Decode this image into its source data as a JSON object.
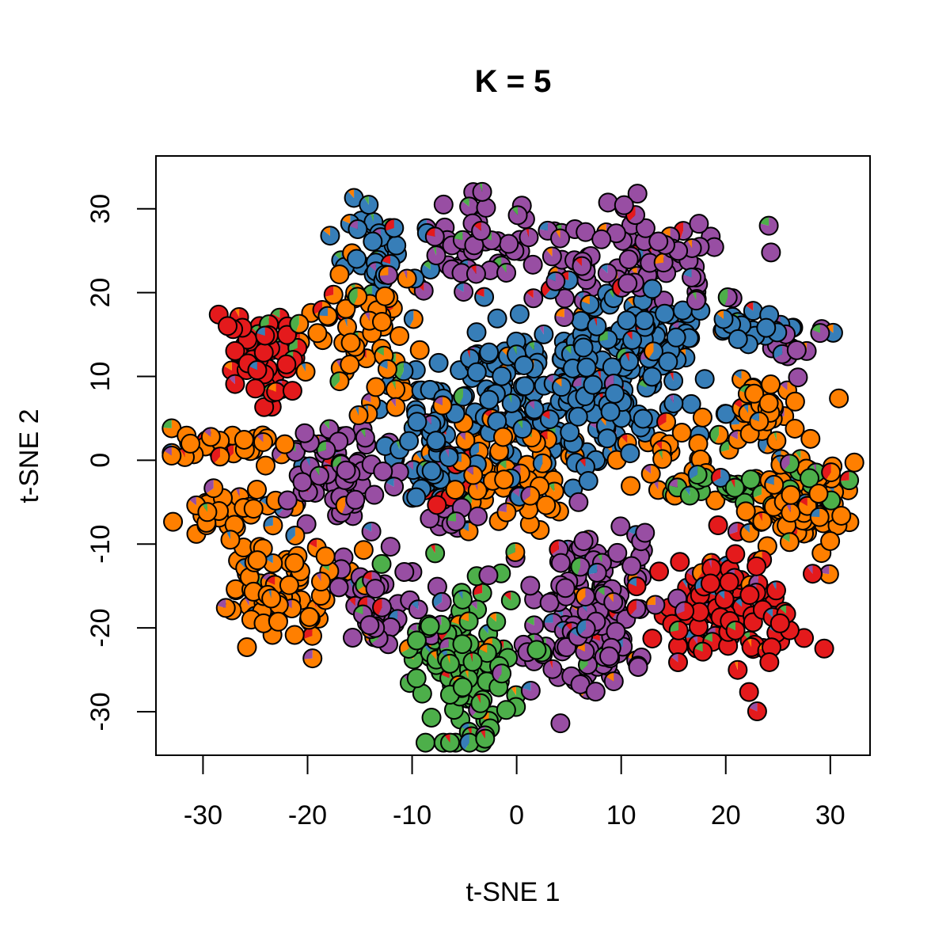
{
  "chart_data": {
    "type": "scatter",
    "title": "K = 5",
    "xlabel": "t-SNE 1",
    "ylabel": "t-SNE 2",
    "xlim": [
      -34.5,
      33.8
    ],
    "ylim": [
      -35.2,
      36.3
    ],
    "xticks": [
      -30,
      -20,
      -10,
      0,
      10,
      20,
      30
    ],
    "yticks": [
      -30,
      -20,
      -10,
      0,
      10,
      20,
      30
    ],
    "tick_labels_x": [
      "-30",
      "-20",
      "-10",
      "0",
      "10",
      "20",
      "30"
    ],
    "tick_labels_y": [
      "-30",
      "-20",
      "-10",
      "0",
      "10",
      "20",
      "30"
    ],
    "grid": false,
    "legend": "none",
    "point_style": "pie-chart markers showing membership proportions of K = 5 clusters",
    "cluster_colors": [
      "#E41A1C",
      "#377EB8",
      "#4DAF4A",
      "#984EA3",
      "#FF7F00"
    ],
    "clusters": [
      {
        "color": "#E41A1C",
        "center": [
          -25,
          12
        ],
        "sd": [
          1.8,
          3.2
        ],
        "n": 55
      },
      {
        "color": "#E41A1C",
        "center": [
          20,
          -18
        ],
        "sd": [
          3.2,
          3.3
        ],
        "n": 110
      },
      {
        "color": "#E41A1C",
        "center": [
          -7,
          -2
        ],
        "sd": [
          1.5,
          2.5
        ],
        "n": 12
      },
      {
        "color": "#377EB8",
        "center": [
          5,
          8
        ],
        "sd": [
          6.0,
          4.5
        ],
        "n": 230
      },
      {
        "color": "#377EB8",
        "center": [
          -13,
          24
        ],
        "sd": [
          1.6,
          2.3
        ],
        "n": 32
      },
      {
        "color": "#377EB8",
        "center": [
          -8,
          2
        ],
        "sd": [
          2.0,
          4.0
        ],
        "n": 55
      },
      {
        "color": "#377EB8",
        "center": [
          23,
          16
        ],
        "sd": [
          4.0,
          1.0
        ],
        "n": 25
      },
      {
        "color": "#377EB8",
        "center": [
          12,
          15
        ],
        "sd": [
          3.0,
          2.0
        ],
        "n": 55
      },
      {
        "color": "#4DAF4A",
        "center": [
          -5,
          -24
        ],
        "sd": [
          3.0,
          5.5
        ],
        "n": 125
      },
      {
        "color": "#4DAF4A",
        "center": [
          20,
          -3
        ],
        "sd": [
          3.0,
          1.0
        ],
        "n": 22
      },
      {
        "color": "#4DAF4A",
        "center": [
          28,
          -2
        ],
        "sd": [
          1.5,
          1.5
        ],
        "n": 12
      },
      {
        "color": "#984EA3",
        "center": [
          -17,
          -1
        ],
        "sd": [
          2.7,
          3.0
        ],
        "n": 70
      },
      {
        "color": "#984EA3",
        "center": [
          -13,
          -18
        ],
        "sd": [
          2.4,
          3.0
        ],
        "n": 45
      },
      {
        "color": "#984EA3",
        "center": [
          7,
          -18
        ],
        "sd": [
          2.8,
          5.0
        ],
        "n": 150
      },
      {
        "color": "#984EA3",
        "center": [
          -4,
          26
        ],
        "sd": [
          2.5,
          2.5
        ],
        "n": 40
      },
      {
        "color": "#984EA3",
        "center": [
          10,
          24
        ],
        "sd": [
          5.5,
          3.0
        ],
        "n": 100
      },
      {
        "color": "#984EA3",
        "center": [
          27,
          13
        ],
        "sd": [
          2.0,
          1.5
        ],
        "n": 15
      },
      {
        "color": "#984EA3",
        "center": [
          -6,
          -7
        ],
        "sd": [
          1.5,
          1.5
        ],
        "n": 10
      },
      {
        "color": "#FF7F00",
        "center": [
          -28,
          -6
        ],
        "sd": [
          2.5,
          1.5
        ],
        "n": 28
      },
      {
        "color": "#FF7F00",
        "center": [
          -28,
          2
        ],
        "sd": [
          3.0,
          1.3
        ],
        "n": 28
      },
      {
        "color": "#FF7F00",
        "center": [
          -23,
          -15
        ],
        "sd": [
          2.8,
          3.5
        ],
        "n": 75
      },
      {
        "color": "#FF7F00",
        "center": [
          -15,
          15
        ],
        "sd": [
          3.0,
          4.5
        ],
        "n": 60
      },
      {
        "color": "#FF7F00",
        "center": [
          -1,
          -1
        ],
        "sd": [
          3.0,
          4.0
        ],
        "n": 80
      },
      {
        "color": "#FF7F00",
        "center": [
          27,
          -5
        ],
        "sd": [
          3.0,
          2.5
        ],
        "n": 95
      },
      {
        "color": "#FF7F00",
        "center": [
          24,
          6
        ],
        "sd": [
          2.0,
          2.0
        ],
        "n": 38
      },
      {
        "color": "#FF7F00",
        "center": [
          14,
          1
        ],
        "sd": [
          2.5,
          2.0
        ],
        "n": 25
      }
    ]
  }
}
